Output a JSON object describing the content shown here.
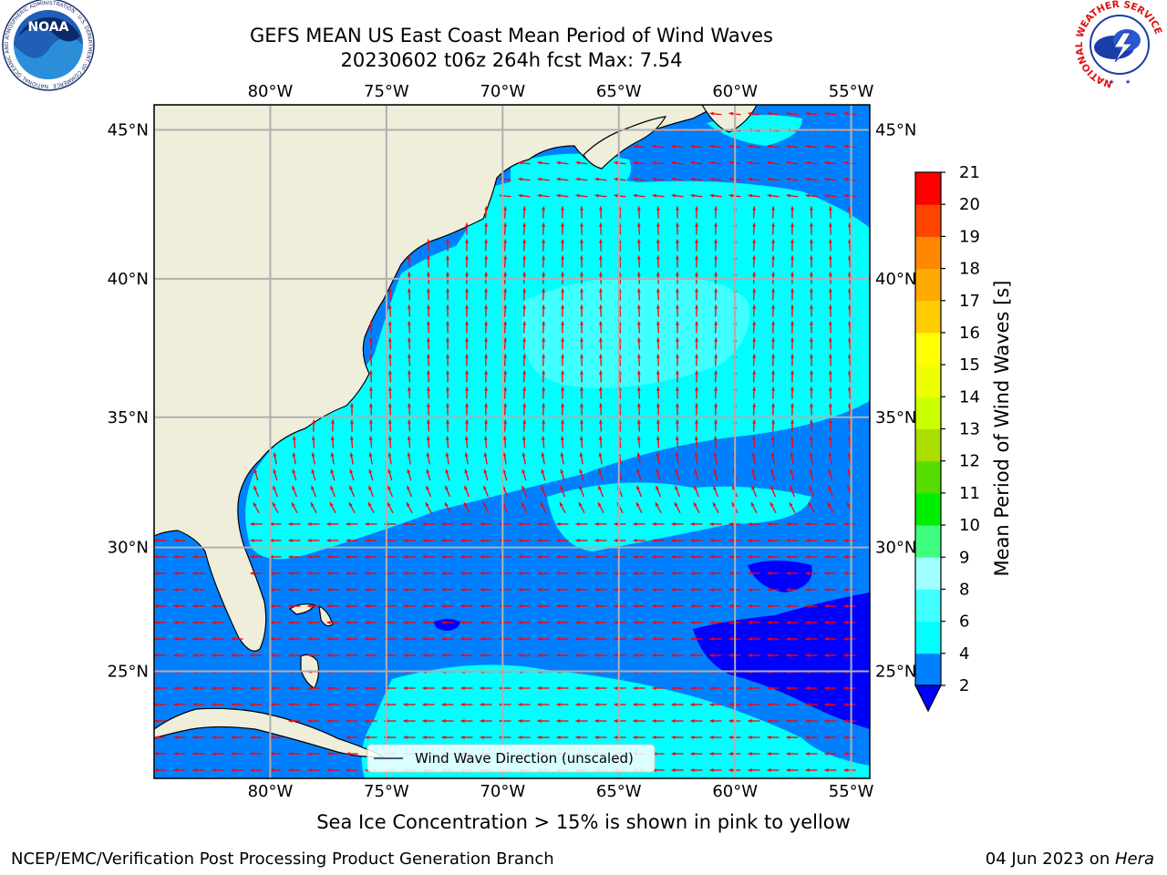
{
  "title": {
    "line1": "GEFS MEAN US East Coast Mean Period of Wind Waves",
    "line2": "20230602 t06z 264h fcst   Max: 7.54"
  },
  "map": {
    "lon_labels": [
      "80°W",
      "75°W",
      "70°W",
      "65°W",
      "60°W",
      "55°W"
    ],
    "lat_labels": [
      "45°N",
      "40°N",
      "35°N",
      "30°N",
      "25°N"
    ],
    "lon_ticks": [
      -80,
      -75,
      -70,
      -65,
      -60,
      -55
    ],
    "lat_ticks": [
      45,
      40,
      35,
      30,
      25
    ],
    "lon_range": [
      -85,
      -54.2
    ],
    "lat_range": [
      20.5,
      45.8
    ],
    "legend_label": "Wind Wave Direction (unscaled)",
    "land_color": "#efeedb",
    "arrow_color": "#ff0000",
    "grid_color": "#b0b0b0"
  },
  "colorbar": {
    "label": "Mean Period of Wind Waves [s]",
    "tick_labels": [
      "2",
      "4",
      "6",
      "8",
      "9",
      "10",
      "11",
      "12",
      "13",
      "14",
      "15",
      "16",
      "17",
      "18",
      "19",
      "20",
      "21"
    ],
    "colors": [
      "#0080ff",
      "#00ffff",
      "#40ffff",
      "#a0ffff",
      "#40ff80",
      "#00ee00",
      "#55dd00",
      "#aadd00",
      "#ccff00",
      "#eeff00",
      "#ffff00",
      "#ffcc00",
      "#ffaa00",
      "#ff8800",
      "#ff4400",
      "#ff0000"
    ],
    "under_color": "#0000ff"
  },
  "subtitle": "Sea Ice Concentration > 15% is shown in pink to yellow",
  "footer": {
    "left": "NCEP/EMC/Verification Post Processing Product Generation Branch",
    "right_date": "04 Jun 2023 on ",
    "right_host": "Hera"
  },
  "logos": {
    "noaa": "NOAA",
    "noaa_ring": "NATIONAL OCEANIC AND ATMOSPHERIC ADMINISTRATION · U.S. DEPARTMENT OF COMMERCE",
    "nws_ring": "NATIONAL WEATHER SERVICE"
  }
}
